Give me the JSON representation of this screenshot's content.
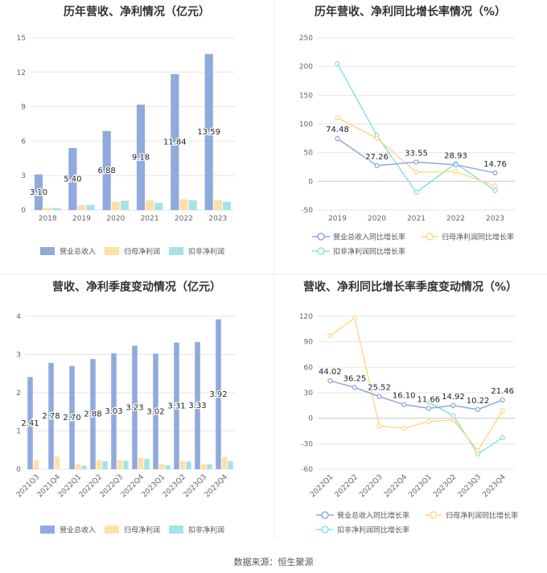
{
  "footer": {
    "source": "数据来源：恒生聚源"
  },
  "colors": {
    "revenue": "#8faadc",
    "net_profit": "#ffe0a8",
    "deducted_profit": "#a6e3e3",
    "revenue_line": "#8faadc",
    "net_line": "#ffd98a",
    "deducted_line": "#8ee0e0"
  },
  "chart_data": [
    {
      "type": "bar",
      "title": "历年营收、净利情况（亿元）",
      "categories": [
        "2018",
        "2019",
        "2020",
        "2021",
        "2022",
        "2023"
      ],
      "ylim": [
        0,
        15
      ],
      "yticks": [
        "0",
        "3",
        "6",
        "9",
        "12",
        "15"
      ],
      "grid": true,
      "legend_position": "bottom",
      "series": [
        {
          "name": "营业总收入",
          "values": [
            3.1,
            5.4,
            6.88,
            9.18,
            11.84,
            13.59
          ],
          "labels": [
            "3.10",
            "5.40",
            "6.88",
            "9.18",
            "11.84",
            "13.59"
          ]
        },
        {
          "name": "归母净利润",
          "values": [
            0.2,
            0.42,
            0.72,
            0.85,
            0.95,
            0.88
          ]
        },
        {
          "name": "扣非净利润",
          "values": [
            0.17,
            0.45,
            0.8,
            0.62,
            0.85,
            0.72
          ]
        }
      ]
    },
    {
      "type": "line",
      "title": "历年营收、净利同比增长率情况（%）",
      "categories": [
        "2019",
        "2020",
        "2021",
        "2022",
        "2023"
      ],
      "ylim": [
        -50,
        250
      ],
      "yticks": [
        "-50",
        "0",
        "50",
        "100",
        "150",
        "200",
        "250"
      ],
      "grid": true,
      "legend_position": "bottom",
      "series": [
        {
          "name": "营业总收入同比增长率",
          "values": [
            74.48,
            27.26,
            33.55,
            28.93,
            14.76
          ],
          "labels": [
            "74.48",
            "27.26",
            "33.55",
            "28.93",
            "14.76"
          ]
        },
        {
          "name": "归母净利润同比增长率",
          "values": [
            111,
            75,
            16,
            17,
            -8
          ]
        },
        {
          "name": "扣非净利润同比增长率",
          "values": [
            205,
            80,
            -19,
            31,
            -16
          ]
        }
      ]
    },
    {
      "type": "bar",
      "title": "营收、净利季度变动情况（亿元）",
      "categories": [
        "2021Q3",
        "2021Q4",
        "2022Q1",
        "2022Q2",
        "2022Q3",
        "2022Q4",
        "2023Q1",
        "2023Q2",
        "2023Q3",
        "2023Q4"
      ],
      "ylim": [
        0,
        4
      ],
      "yticks": [
        "0",
        "1",
        "2",
        "3",
        "4"
      ],
      "grid": true,
      "legend_position": "bottom",
      "series": [
        {
          "name": "营业总收入",
          "values": [
            2.41,
            2.78,
            2.7,
            2.88,
            3.03,
            3.23,
            3.02,
            3.31,
            3.33,
            3.92
          ],
          "labels": [
            "2.41",
            "2.78",
            "2.70",
            "2.88",
            "3.03",
            "3.23",
            "3.02",
            "3.31",
            "3.33",
            "3.92"
          ]
        },
        {
          "name": "归母净利润",
          "values": [
            0.24,
            0.33,
            0.14,
            0.24,
            0.23,
            0.29,
            0.14,
            0.22,
            0.14,
            0.32
          ]
        },
        {
          "name": "扣非净利润",
          "values": [
            0.0,
            0.0,
            0.09,
            0.21,
            0.22,
            0.27,
            0.1,
            0.2,
            0.13,
            0.21
          ]
        }
      ]
    },
    {
      "type": "line",
      "title": "营收、净利同比增长率季度变动情况（%）",
      "categories": [
        "2022Q1",
        "2022Q2",
        "2022Q3",
        "2022Q4",
        "2023Q1",
        "2023Q2",
        "2023Q3",
        "2023Q4"
      ],
      "ylim": [
        -60,
        120
      ],
      "yticks": [
        "-60",
        "-30",
        "0",
        "30",
        "60",
        "90",
        "120"
      ],
      "grid": true,
      "legend_position": "bottom",
      "series": [
        {
          "name": "营业总收入同比增长率",
          "values": [
            44.02,
            36.25,
            25.52,
            16.1,
            11.66,
            14.92,
            10.22,
            21.46
          ],
          "labels": [
            "44.02",
            "36.25",
            "25.52",
            "16.10",
            "11.66",
            "14.92",
            "10.22",
            "21.46"
          ]
        },
        {
          "name": "归母净利润同比增长率",
          "values": [
            97,
            118,
            -9,
            -12,
            -4,
            -2,
            -38,
            9
          ]
        },
        {
          "name": "扣非净利润同比增长率",
          "values": [
            null,
            null,
            null,
            null,
            19,
            3,
            -42,
            -23
          ]
        }
      ]
    }
  ]
}
